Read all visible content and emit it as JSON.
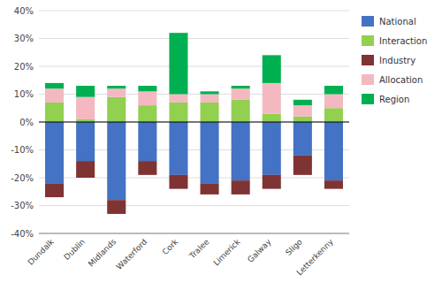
{
  "chart_data": {
    "type": "bar",
    "stacked": true,
    "categories": [
      "Dundalk",
      "Dublin",
      "Midlands",
      "Waterford",
      "Cork",
      "Tralee",
      "Limerick",
      "Galway",
      "Sligo",
      "Letterkenny"
    ],
    "series": [
      {
        "name": "National",
        "color": "#4472c4",
        "values": [
          -22,
          -14,
          -28,
          -14,
          -19,
          -22,
          -21,
          -19,
          -12,
          -21
        ]
      },
      {
        "name": "Interaction",
        "color": "#92d050",
        "values": [
          7,
          1,
          9,
          6,
          7,
          7,
          8,
          3,
          2,
          5
        ]
      },
      {
        "name": "Industry",
        "color": "#7f3333",
        "values": [
          -5,
          -6,
          -5,
          -5,
          -5,
          -4,
          -5,
          -5,
          -7,
          -3
        ]
      },
      {
        "name": "Allocation",
        "color": "#f4b8c1",
        "values": [
          5,
          8,
          3,
          5,
          3,
          3,
          4,
          11,
          4,
          5
        ]
      },
      {
        "name": "Region",
        "color": "#00b050",
        "values": [
          2,
          4,
          1,
          2,
          22,
          1,
          1,
          10,
          2,
          3
        ]
      }
    ],
    "ylim": [
      -40,
      40
    ],
    "yticks": [
      {
        "value": -40,
        "label": "-40%"
      },
      {
        "value": -30,
        "label": "-30%"
      },
      {
        "value": -20,
        "label": "-20%"
      },
      {
        "value": -10,
        "label": "-10%"
      },
      {
        "value": 0,
        "label": "0%"
      },
      {
        "value": 10,
        "label": "10%"
      },
      {
        "value": 20,
        "label": "20%"
      },
      {
        "value": 30,
        "label": "30%"
      },
      {
        "value": 40,
        "label": "40%"
      }
    ],
    "grid": true,
    "legend": "right"
  }
}
